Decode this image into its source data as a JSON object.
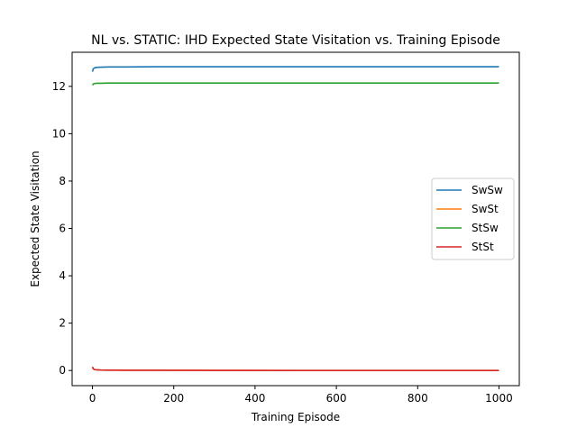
{
  "chart_data": {
    "type": "line",
    "title": "NL vs. STATIC: IHD Expected State Visitation vs. Training Episode",
    "xlabel": "Training Episode",
    "ylabel": "Expected State Visitation",
    "xlim": [
      -50,
      1050
    ],
    "ylim": [
      -0.64,
      13.44
    ],
    "xticks": [
      0,
      200,
      400,
      600,
      800,
      1000
    ],
    "yticks": [
      0,
      2,
      4,
      6,
      8,
      10,
      12
    ],
    "grid": false,
    "legend_position": "center-right",
    "series": [
      {
        "name": "SwSw",
        "color": "#1f77b4",
        "x": [
          0,
          2,
          5,
          10,
          20,
          40,
          80,
          150,
          300,
          500,
          750,
          1000
        ],
        "values": [
          12.62,
          12.74,
          12.78,
          12.8,
          12.81,
          12.82,
          12.82,
          12.83,
          12.83,
          12.83,
          12.83,
          12.83
        ]
      },
      {
        "name": "SwSt",
        "color": "#ff7f0e",
        "x": [
          0,
          2,
          5,
          10,
          20,
          40,
          80,
          150,
          300,
          500,
          750,
          1000
        ],
        "values": [
          0.15,
          0.07,
          0.04,
          0.03,
          0.02,
          0.015,
          0.01,
          0.01,
          0.005,
          0.0,
          0.0,
          0.0
        ]
      },
      {
        "name": "StSw",
        "color": "#2ca02c",
        "x": [
          0,
          2,
          5,
          10,
          20,
          40,
          80,
          150,
          300,
          500,
          750,
          1000
        ],
        "values": [
          12.05,
          12.1,
          12.12,
          12.13,
          12.13,
          12.14,
          12.14,
          12.14,
          12.14,
          12.14,
          12.14,
          12.14
        ]
      },
      {
        "name": "StSt",
        "color": "#d62728",
        "x": [
          0,
          2,
          5,
          10,
          20,
          40,
          80,
          150,
          300,
          500,
          750,
          1000
        ],
        "values": [
          0.15,
          0.07,
          0.04,
          0.03,
          0.02,
          0.015,
          0.01,
          0.01,
          0.005,
          0.0,
          0.0,
          0.0
        ]
      }
    ]
  }
}
